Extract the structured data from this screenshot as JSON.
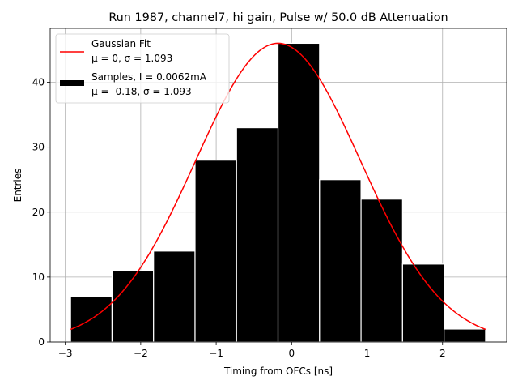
{
  "chart_data": {
    "type": "bar",
    "title": "Run 1987, channel7, hi gain, Pulse w/ 50.0 dB Attenuation",
    "xlabel": "Timing from OFCs [ns]",
    "ylabel": "Entries",
    "xlim": [
      -3.2,
      2.85
    ],
    "ylim": [
      0,
      48.3
    ],
    "grid": true,
    "xticks": [
      -3,
      -2,
      -1,
      0,
      1,
      2
    ],
    "xtick_labels": [
      "−3",
      "−2",
      "−1",
      "0",
      "1",
      "2"
    ],
    "yticks": [
      0,
      10,
      20,
      30,
      40
    ],
    "ytick_labels": [
      "0",
      "10",
      "20",
      "30",
      "40"
    ],
    "bins": {
      "edges": [
        -2.93,
        -2.38,
        -1.83,
        -1.28,
        -0.73,
        -0.18,
        0.37,
        0.92,
        1.47,
        2.02,
        2.57
      ],
      "counts": [
        7,
        11,
        14,
        28,
        33,
        46,
        25,
        22,
        12,
        2
      ]
    },
    "fit": {
      "amplitude": 46,
      "mean": -0.18,
      "sigma": 1.093,
      "x_range": [
        -2.93,
        2.57
      ]
    },
    "legend": {
      "placement": "upper left",
      "entries": [
        {
          "line1": "Gaussian Fit",
          "line2": "μ = 0, σ = 1.093",
          "color": "#ff0000",
          "kind": "line"
        },
        {
          "line1": "Samples, I = 0.0062mA",
          "line2": "μ = -0.18, σ = 1.093",
          "color": "#000000",
          "kind": "patch"
        }
      ]
    }
  }
}
